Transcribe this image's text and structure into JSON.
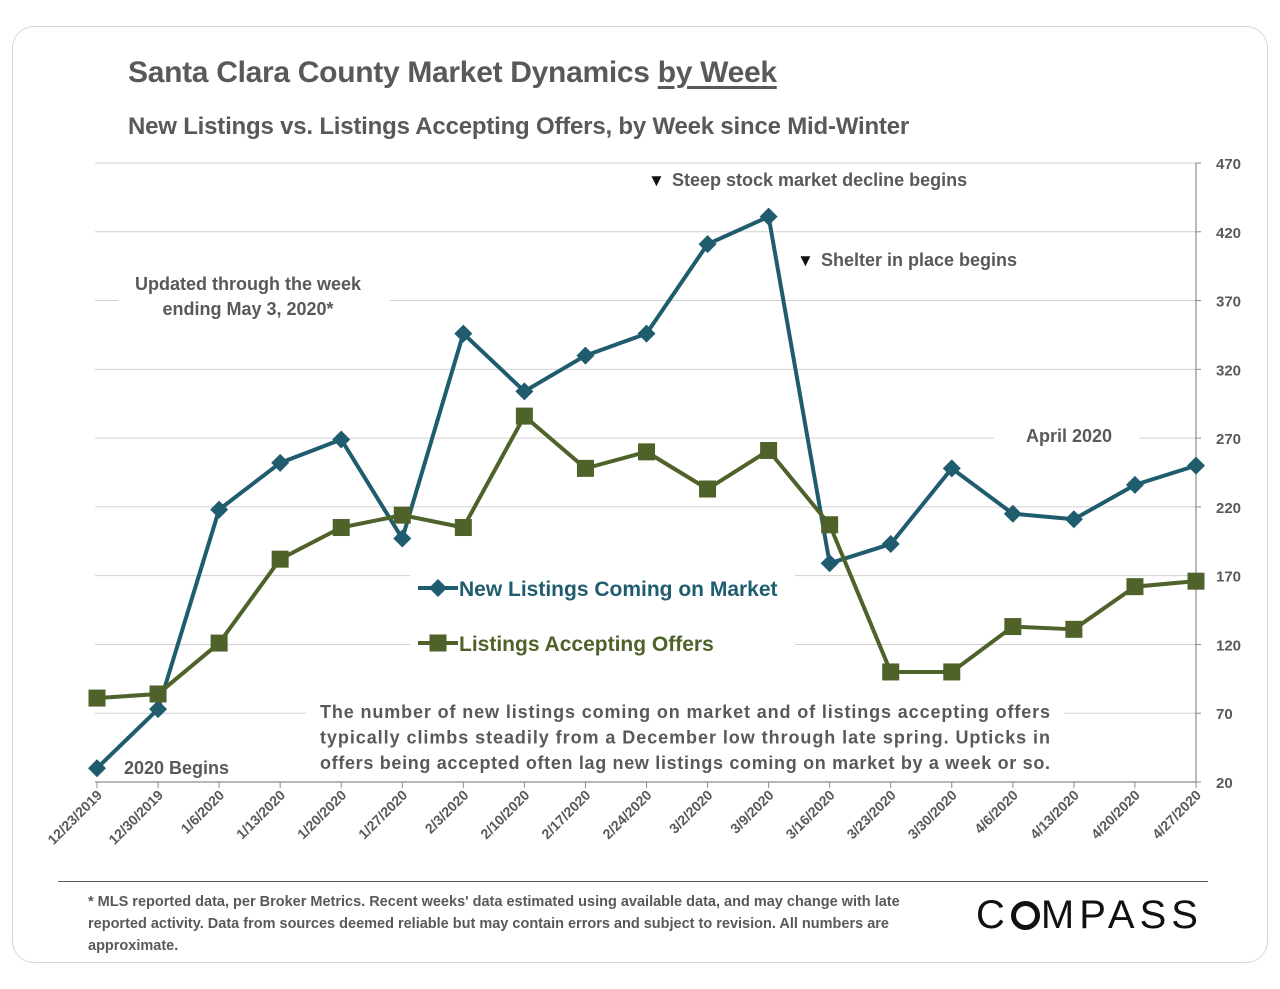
{
  "header": {
    "title_main": "Santa Clara County Market Dynamics",
    "title_emph": "by Week",
    "subtitle": "New Listings vs. Listings Accepting Offers, by Week since Mid-Winter"
  },
  "chart_data": {
    "type": "line",
    "title": "Santa Clara County Market Dynamics by Week",
    "subtitle": "New Listings vs. Listings Accepting Offers, by Week since Mid-Winter",
    "categories": [
      "12/23/2019",
      "12/30/2019",
      "1/6/2020",
      "1/13/2020",
      "1/20/2020",
      "1/27/2020",
      "2/3/2020",
      "2/10/2020",
      "2/17/2020",
      "2/24/2020",
      "3/2/2020",
      "3/9/2020",
      "3/16/2020",
      "3/23/2020",
      "3/30/2020",
      "4/6/2020",
      "4/13/2020",
      "4/20/2020",
      "4/27/2020"
    ],
    "series": [
      {
        "name": "New Listings Coming on Market",
        "color": "#1f5c6e",
        "marker": "diamond",
        "values": [
          30,
          73,
          218,
          252,
          269,
          197,
          346,
          304,
          330,
          346,
          411,
          431,
          179,
          193,
          248,
          215,
          211,
          236,
          250
        ]
      },
      {
        "name": "Listings Accepting Offers",
        "color": "#4e6229",
        "marker": "square",
        "values": [
          81,
          84,
          121,
          182,
          205,
          214,
          205,
          286,
          248,
          260,
          233,
          261,
          207,
          100,
          100,
          133,
          131,
          162,
          166
        ]
      }
    ],
    "yaxis": {
      "position": "right",
      "ylim": [
        20,
        470
      ],
      "ticks": [
        20,
        70,
        120,
        170,
        220,
        270,
        320,
        370,
        420,
        470
      ]
    },
    "grid": true,
    "annotations": {
      "updated": [
        "Updated through the week",
        "ending May 3, 2020*"
      ],
      "stock": "Steep stock market decline begins",
      "shelter": "Shelter in place begins",
      "april": "April 2020",
      "begins": "2020 Begins",
      "note": [
        "The number of new listings coming on market and of listings accepting offers",
        "typically climbs steadily from a December low through late spring. Upticks in",
        "offers being accepted often lag new listings coming on market by a week or so."
      ]
    },
    "marker_glyph": "▼"
  },
  "footer": {
    "footnote": "* MLS reported data, per Broker Metrics. Recent weeks' data estimated using available data, and may change with late reported activity. Data from sources deemed reliable but may contain errors and subject to revision. All numbers are approximate.",
    "logo_c": "C",
    "logo_rest": "MPASS"
  }
}
